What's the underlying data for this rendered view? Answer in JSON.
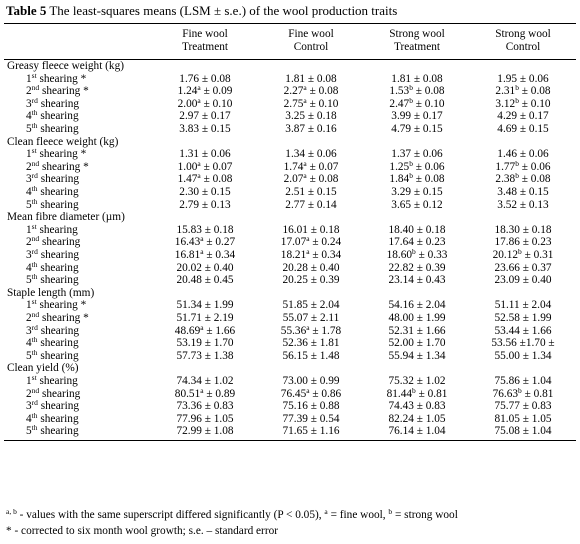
{
  "caption": {
    "label": "Table 5",
    "text": " The least-squares means (LSM ± s.e.) of the wool production traits"
  },
  "header": [
    "",
    [
      "Fine wool",
      "Treatment"
    ],
    [
      "Fine wool",
      "Control"
    ],
    [
      "Strong wool",
      "Treatment"
    ],
    [
      "Strong wool",
      "Control"
    ]
  ],
  "sections": [
    {
      "title": "Greasy fleece weight (kg)",
      "rows": [
        {
          "n": "1",
          "ord": "st",
          "mark": " *",
          "cells": [
            [
              "1.76 ± 0.08",
              ""
            ],
            [
              "1.81 ± 0.08",
              ""
            ],
            [
              "1.81 ± 0.08",
              ""
            ],
            [
              "1.95 ± 0.06",
              ""
            ]
          ]
        },
        {
          "n": "2",
          "ord": "nd",
          "mark": " *",
          "cells": [
            [
              "1.24 ± 0.09",
              "a"
            ],
            [
              "2.27 ± 0.08",
              "a"
            ],
            [
              "1.53 ± 0.08",
              "b"
            ],
            [
              "2.31 ± 0.08",
              "b"
            ]
          ]
        },
        {
          "n": "3",
          "ord": "rd",
          "mark": "",
          "cells": [
            [
              "2.00 ± 0.10",
              "a"
            ],
            [
              "2.75 ± 0.10",
              "a"
            ],
            [
              "2.47 ± 0.10",
              "b"
            ],
            [
              "3.12 ± 0.10",
              "b"
            ]
          ]
        },
        {
          "n": "4",
          "ord": "th",
          "mark": "",
          "cells": [
            [
              "2.97 ± 0.17",
              ""
            ],
            [
              "3.25 ± 0.18",
              ""
            ],
            [
              "3.99 ± 0.17",
              ""
            ],
            [
              "4.29 ± 0.17",
              ""
            ]
          ]
        },
        {
          "n": "5",
          "ord": "th",
          "mark": "",
          "cells": [
            [
              "3.83 ± 0.15",
              ""
            ],
            [
              "3.87 ± 0.16",
              ""
            ],
            [
              "4.79 ± 0.15",
              ""
            ],
            [
              "4.69 ± 0.15",
              ""
            ]
          ]
        }
      ]
    },
    {
      "title": "Clean fleece weight (kg)",
      "rows": [
        {
          "n": "1",
          "ord": "st",
          "mark": " *",
          "cells": [
            [
              "1.31 ± 0.06",
              ""
            ],
            [
              "1.34 ± 0.06",
              ""
            ],
            [
              "1.37 ± 0.06",
              ""
            ],
            [
              "1.46 ± 0.06",
              ""
            ]
          ]
        },
        {
          "n": "2",
          "ord": "nd",
          "mark": " *",
          "cells": [
            [
              "1.00 ± 0.07",
              "a"
            ],
            [
              "1.74 ± 0.07",
              "a"
            ],
            [
              "1.25 ± 0.06",
              "b"
            ],
            [
              "1.77 ± 0.06",
              "b"
            ]
          ]
        },
        {
          "n": "3",
          "ord": "rd",
          "mark": "",
          "cells": [
            [
              "1.47 ± 0.08",
              "a"
            ],
            [
              "2.07 ± 0.08",
              "a"
            ],
            [
              "1.84 ± 0.08",
              "b"
            ],
            [
              "2.38 ± 0.08",
              "b"
            ]
          ]
        },
        {
          "n": "4",
          "ord": "th",
          "mark": "",
          "cells": [
            [
              "2.30 ± 0.15",
              ""
            ],
            [
              "2.51 ± 0.15",
              ""
            ],
            [
              "3.29 ± 0.15",
              ""
            ],
            [
              "3.48 ± 0.15",
              ""
            ]
          ]
        },
        {
          "n": "5",
          "ord": "th",
          "mark": "",
          "cells": [
            [
              "2.79 ± 0.13",
              ""
            ],
            [
              "2.77 ± 0.14",
              ""
            ],
            [
              "3.65 ± 0.12",
              ""
            ],
            [
              "3.52 ± 0.13",
              ""
            ]
          ]
        }
      ]
    },
    {
      "title": "Mean fibre diameter (µm)",
      "rows": [
        {
          "n": "1",
          "ord": "st",
          "mark": "",
          "cells": [
            [
              "15.83 ± 0.18",
              ""
            ],
            [
              "16.01 ± 0.18",
              ""
            ],
            [
              "18.40 ± 0.18",
              ""
            ],
            [
              "18.30 ± 0.18",
              ""
            ]
          ]
        },
        {
          "n": "2",
          "ord": "nd",
          "mark": "",
          "cells": [
            [
              "16.43 ± 0.27",
              "a"
            ],
            [
              "17.07 ± 0.24",
              "a"
            ],
            [
              "17.64 ± 0.23",
              ""
            ],
            [
              "17.86 ± 0.23",
              ""
            ]
          ]
        },
        {
          "n": "3",
          "ord": "rd",
          "mark": "",
          "cells": [
            [
              "16.81 ± 0.34",
              "a"
            ],
            [
              "18.21 ± 0.34",
              "a"
            ],
            [
              "18.60 ± 0.33",
              "b"
            ],
            [
              "20.12 ± 0.31",
              "b"
            ]
          ]
        },
        {
          "n": "4",
          "ord": "th",
          "mark": "",
          "cells": [
            [
              "20.02 ± 0.40",
              ""
            ],
            [
              "20.28 ± 0.40",
              ""
            ],
            [
              "22.82 ± 0.39",
              ""
            ],
            [
              "23.66 ± 0.37",
              ""
            ]
          ]
        },
        {
          "n": "5",
          "ord": "th",
          "mark": "",
          "cells": [
            [
              "20.48 ± 0.45",
              ""
            ],
            [
              "20.25 ± 0.39",
              ""
            ],
            [
              "23.14 ± 0.43",
              ""
            ],
            [
              "23.09 ± 0.40",
              ""
            ]
          ]
        }
      ]
    },
    {
      "title": "Staple length (mm)",
      "rows": [
        {
          "n": "1",
          "ord": "st",
          "mark": " *",
          "cells": [
            [
              "51.34 ± 1.99",
              ""
            ],
            [
              "51.85 ± 2.04",
              ""
            ],
            [
              "54.16 ± 2.04",
              ""
            ],
            [
              "51.11 ± 2.04",
              ""
            ]
          ]
        },
        {
          "n": "2",
          "ord": "nd",
          "mark": " *",
          "cells": [
            [
              "51.71 ± 2.19",
              ""
            ],
            [
              "55.07 ± 2.11",
              ""
            ],
            [
              "48.00 ± 1.99",
              ""
            ],
            [
              "52.58 ± 1.99",
              ""
            ]
          ]
        },
        {
          "n": "3",
          "ord": "rd",
          "mark": "",
          "cells": [
            [
              "48.69 ± 1.66",
              "a"
            ],
            [
              "55.36 ± 1.78",
              "a"
            ],
            [
              "52.31 ± 1.66",
              ""
            ],
            [
              "53.44 ± 1.66",
              ""
            ]
          ]
        },
        {
          "n": "4",
          "ord": "th",
          "mark": "",
          "cells": [
            [
              "53.19 ± 1.70",
              ""
            ],
            [
              "52.36 ± 1.81",
              ""
            ],
            [
              "52.00 ± 1.70",
              ""
            ],
            [
              "53.56 ±1.70",
              ""
            ]
          ]
        },
        {
          "n": "5",
          "ord": "th",
          "mark": "",
          "cells": [
            [
              "57.73 ± 1.38",
              ""
            ],
            [
              "56.15 ± 1.48",
              ""
            ],
            [
              "55.94 ± 1.34",
              ""
            ],
            [
              "55.00 ± 1.34",
              ""
            ]
          ]
        }
      ]
    },
    {
      "title": "Clean yield (%)",
      "rows": [
        {
          "n": "1",
          "ord": "st",
          "mark": "",
          "cells": [
            [
              "74.34 ± 1.02",
              ""
            ],
            [
              "73.00 ± 0.99",
              ""
            ],
            [
              "75.32 ± 1.02",
              ""
            ],
            [
              "75.86 ± 1.04",
              ""
            ]
          ]
        },
        {
          "n": "2",
          "ord": "nd",
          "mark": "",
          "cells": [
            [
              "80.51 ± 0.89",
              "a"
            ],
            [
              "76.45 ± 0.86",
              "a"
            ],
            [
              "81.44 ± 0.81",
              "b"
            ],
            [
              "76.63 ± 0.81",
              "b"
            ]
          ]
        },
        {
          "n": "3",
          "ord": "rd",
          "mark": "",
          "cells": [
            [
              "73.36 ± 0.83",
              ""
            ],
            [
              "75.16 ± 0.88",
              ""
            ],
            [
              "74.43 ± 0.83",
              ""
            ],
            [
              "75.77 ± 0.83",
              ""
            ]
          ]
        },
        {
          "n": "4",
          "ord": "th",
          "mark": "",
          "cells": [
            [
              "77.96 ± 1.05",
              ""
            ],
            [
              "77.39 ± 0.54",
              ""
            ],
            [
              "82.24 ± 1.05",
              ""
            ],
            [
              "81.05 ± 1.05",
              ""
            ]
          ]
        },
        {
          "n": "5",
          "ord": "th",
          "mark": "",
          "cells": [
            [
              "72.99 ± 1.08",
              ""
            ],
            [
              "71.65 ± 1.16",
              ""
            ],
            [
              "76.14 ± 1.04",
              ""
            ],
            [
              "75.08 ± 1.04",
              ""
            ]
          ]
        }
      ]
    }
  ],
  "row_word": "shearing",
  "footnotes": {
    "sig_marks": "a, b",
    "sig_text": " - values with the same superscript differed significantly (P < 0.05), ",
    "a_mark": "a",
    "a_text": " = fine wool, ",
    "b_mark": "b",
    "b_text": " = strong wool",
    "note2": "* - corrected to six month wool growth; s.e. – standard error"
  }
}
